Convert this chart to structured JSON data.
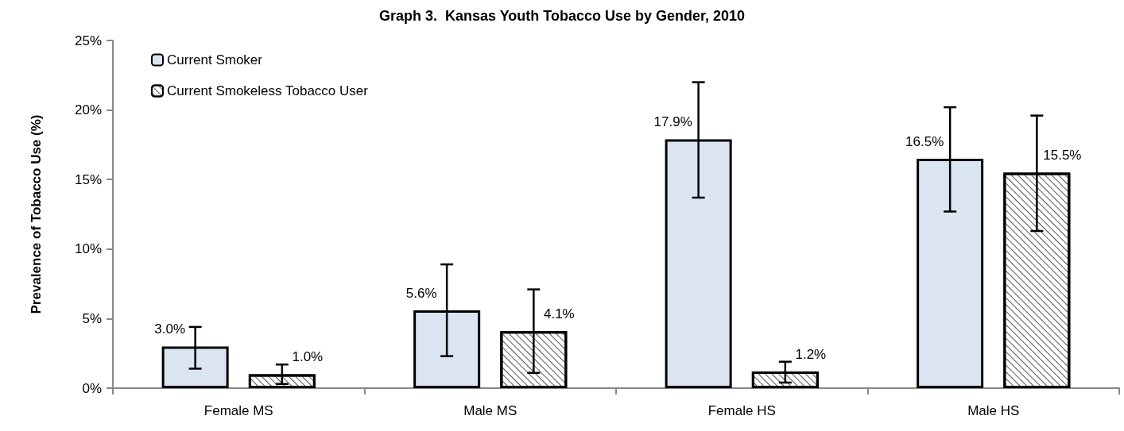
{
  "chart_data": {
    "type": "bar",
    "title": "Graph 3.  Kansas Youth Tobacco Use by Gender, 2010",
    "ylabel": "Prevalence of Tobacco Use (%)",
    "categories": [
      "Female MS",
      "Male MS",
      "Female HS",
      "Male HS"
    ],
    "series": [
      {
        "name": "Current Smoker",
        "color": "#dbe5f1",
        "values": [
          3.0,
          5.6,
          17.9,
          16.5
        ],
        "value_labels": [
          "3.0%",
          "5.6%",
          "17.9%",
          "16.5%"
        ],
        "errors": [
          [
            1.4,
            4.4
          ],
          [
            2.3,
            8.9
          ],
          [
            13.7,
            22.0
          ],
          [
            12.7,
            20.2
          ]
        ]
      },
      {
        "name": "Current Smokeless Tobacco User",
        "color": "#ffffff",
        "values": [
          1.0,
          4.1,
          1.2,
          15.5
        ],
        "value_labels": [
          "1.0%",
          "4.1%",
          "1.2%",
          "15.5%"
        ],
        "errors": [
          [
            0.3,
            1.7
          ],
          [
            1.1,
            7.1
          ],
          [
            0.4,
            1.9
          ],
          [
            11.3,
            19.6
          ]
        ]
      }
    ],
    "ylim": [
      0,
      25
    ],
    "yticks": [
      {
        "value": 0,
        "label": "0%"
      },
      {
        "value": 5,
        "label": "5%"
      },
      {
        "value": 10,
        "label": "10%"
      },
      {
        "value": 15,
        "label": "15%"
      },
      {
        "value": 20,
        "label": "20%"
      },
      {
        "value": 25,
        "label": "25%"
      }
    ],
    "grid": false,
    "legend": "top left"
  }
}
